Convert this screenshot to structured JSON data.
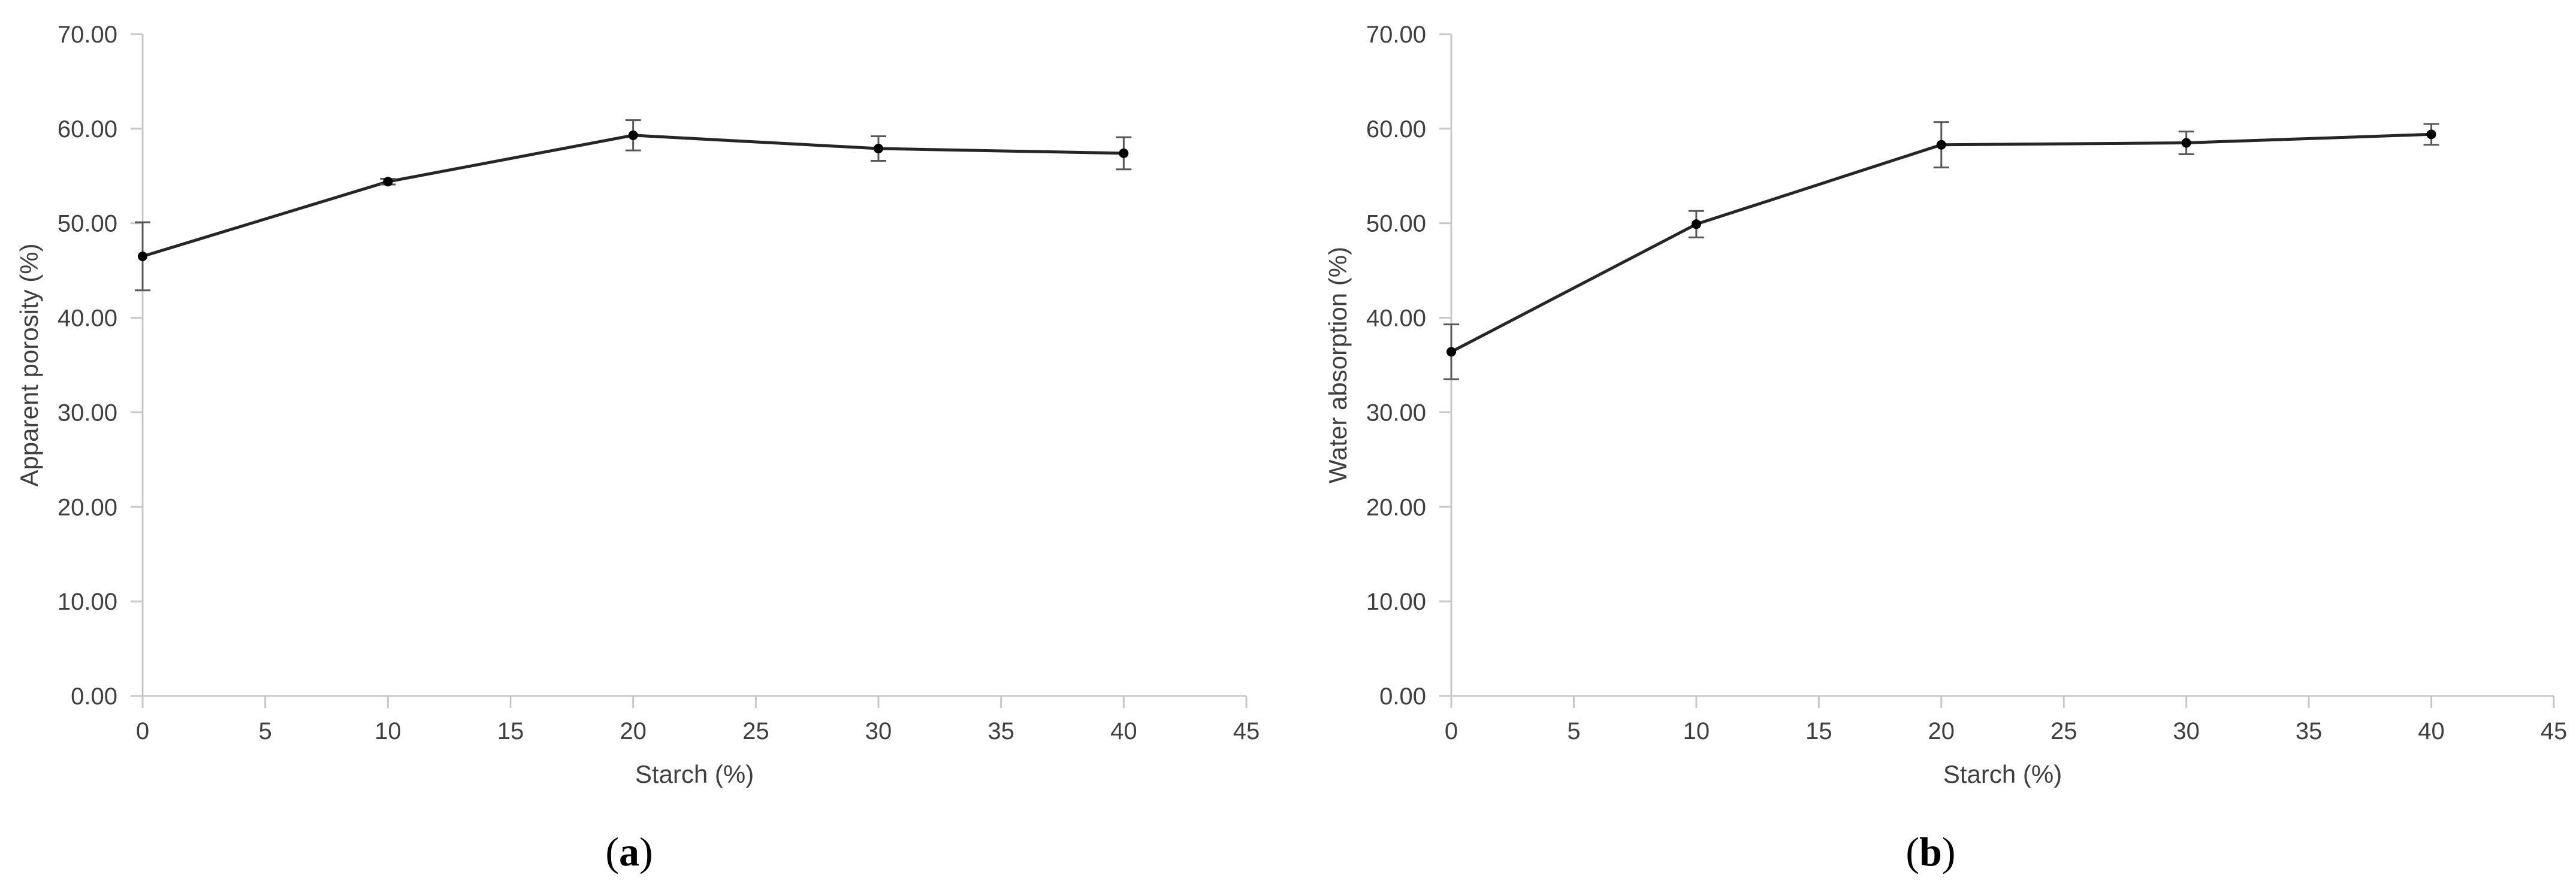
{
  "chart_data": [
    {
      "type": "line",
      "panel_label": {
        "open": "(",
        "letter": "a",
        "close": ")"
      },
      "title": "",
      "xlabel": "Starch (%)",
      "ylabel": "Apparent porosity (%)",
      "xlim": [
        0,
        45
      ],
      "ylim": [
        0,
        70
      ],
      "xticks": [
        0,
        5,
        10,
        15,
        20,
        25,
        30,
        35,
        40,
        45
      ],
      "yticks": [
        0,
        10,
        20,
        30,
        40,
        50,
        60,
        70
      ],
      "ytick_decimals": 2,
      "grid": false,
      "line_color": "#262626",
      "error_bar_color": "#595959",
      "series": [
        {
          "x": [
            0,
            10,
            20,
            30,
            40
          ],
          "y": [
            46.5,
            54.4,
            59.3,
            57.9,
            57.4
          ],
          "error": [
            3.6,
            0.3,
            1.6,
            1.3,
            1.7
          ]
        }
      ]
    },
    {
      "type": "line",
      "panel_label": {
        "open": "(",
        "letter": "b",
        "close": ")"
      },
      "title": "",
      "xlabel": "Starch (%)",
      "ylabel": "Water absorption (%)",
      "xlim": [
        0,
        45
      ],
      "ylim": [
        0,
        70
      ],
      "xticks": [
        0,
        5,
        10,
        15,
        20,
        25,
        30,
        35,
        40,
        45
      ],
      "yticks": [
        0,
        10,
        20,
        30,
        40,
        50,
        60,
        70
      ],
      "ytick_decimals": 2,
      "grid": false,
      "line_color": "#262626",
      "error_bar_color": "#595959",
      "series": [
        {
          "x": [
            0,
            10,
            20,
            30,
            40
          ],
          "y": [
            36.4,
            49.9,
            58.3,
            58.5,
            59.4
          ],
          "error": [
            2.9,
            1.4,
            2.4,
            1.2,
            1.1
          ]
        }
      ]
    }
  ]
}
